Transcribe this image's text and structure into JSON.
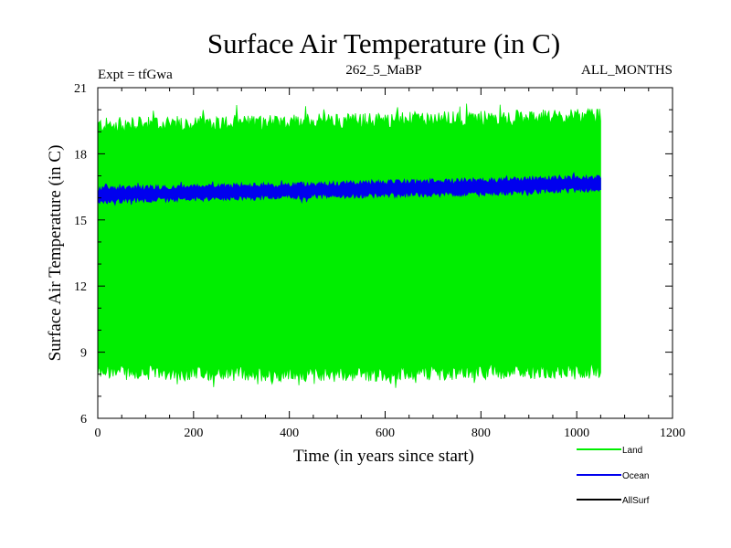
{
  "chart_data": {
    "type": "line",
    "title": "Surface Air Temperature (in C)",
    "expt_label": "Expt = tfGwa",
    "subtitle": "262_5_MaBP",
    "months_label": "ALL_MONTHS",
    "xlabel": "Time (in years since start)",
    "ylabel": "Surface Air Temperature (in C)",
    "xlim": [
      0,
      1200
    ],
    "ylim": [
      6,
      21
    ],
    "x_ticks": [
      0,
      200,
      400,
      600,
      800,
      1000,
      1200
    ],
    "x_tick_labels": [
      "0",
      "200",
      "400",
      "600",
      "800",
      "1000",
      "1200"
    ],
    "y_ticks": [
      6,
      9,
      12,
      15,
      18,
      21
    ],
    "y_tick_labels": [
      "6",
      "9",
      "12",
      "15",
      "18",
      "21"
    ],
    "legend_position": "bottom-right",
    "series": [
      {
        "name": "Land",
        "color": "#00ee00",
        "style": "band",
        "x_start": 0,
        "x_end": 1050,
        "upper_mean": [
          [
            0,
            19.3
          ],
          [
            500,
            19.5
          ],
          [
            1050,
            19.7
          ]
        ],
        "lower_mean": [
          [
            0,
            8.1
          ],
          [
            500,
            8.0
          ],
          [
            1050,
            8.2
          ]
        ],
        "fluctuation": 0.35
      },
      {
        "name": "Ocean",
        "color": "#0000ee",
        "style": "band",
        "x_start": 0,
        "x_end": 1050,
        "upper_mean": [
          [
            0,
            16.4
          ],
          [
            400,
            16.6
          ],
          [
            800,
            16.8
          ],
          [
            1050,
            16.95
          ]
        ],
        "lower_mean": [
          [
            0,
            15.85
          ],
          [
            400,
            16.05
          ],
          [
            800,
            16.2
          ],
          [
            1050,
            16.4
          ]
        ],
        "fluctuation": 0.12
      },
      {
        "name": "AllSurf",
        "color": "#000000",
        "style": "legend-only"
      }
    ]
  }
}
